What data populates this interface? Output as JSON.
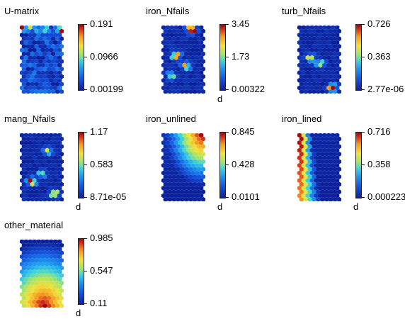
{
  "chart_data": [
    {
      "type": "heatmap",
      "title": "U-matrix",
      "ticks": [
        "0.191",
        "0.0966",
        "0.00199"
      ],
      "unit": "",
      "pattern": "umatrix"
    },
    {
      "type": "heatmap",
      "title": "iron_Nfails",
      "ticks": [
        "3.45",
        "1.73",
        "0.00322"
      ],
      "unit": "d",
      "pattern": "spots"
    },
    {
      "type": "heatmap",
      "title": "turb_Nfails",
      "ticks": [
        "0.726",
        "0.363",
        "2.77e-06"
      ],
      "unit": "",
      "pattern": "spots"
    },
    {
      "type": "heatmap",
      "title": "mang_Nfails",
      "ticks": [
        "1.17",
        "0.583",
        "8.71e-05"
      ],
      "unit": "d",
      "pattern": "spots"
    },
    {
      "type": "heatmap",
      "title": "iron_unlined",
      "ticks": [
        "0.845",
        "0.428",
        "0.0101"
      ],
      "unit": "d",
      "pattern": "topright"
    },
    {
      "type": "heatmap",
      "title": "iron_lined",
      "ticks": [
        "0.716",
        "0.358",
        "0.000223"
      ],
      "unit": "d",
      "pattern": "leftedge"
    },
    {
      "type": "heatmap",
      "title": "other_material",
      "ticks": [
        "0.985",
        "0.547",
        "0.11"
      ],
      "unit": "d",
      "pattern": "bottom"
    }
  ],
  "colors": {
    "low": "#0b1f9a",
    "mid": "#3fd4d8",
    "high": "#9e0a0a"
  }
}
